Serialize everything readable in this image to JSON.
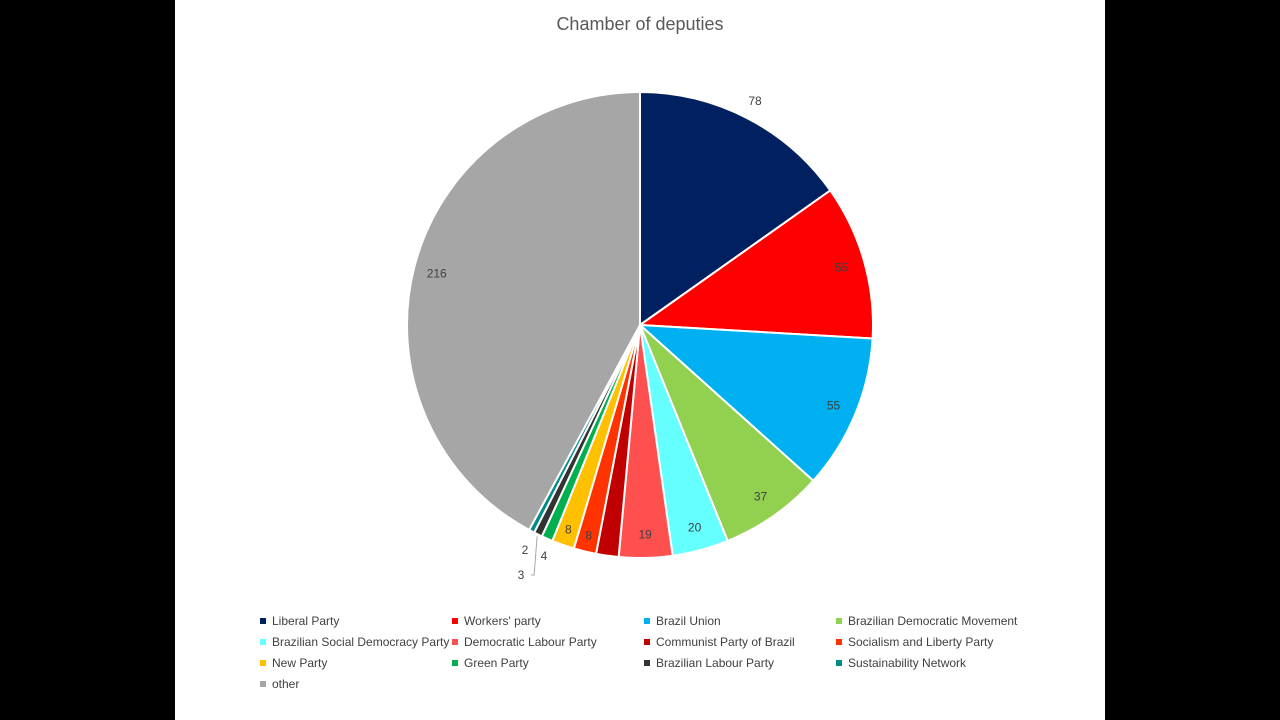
{
  "chart_data": {
    "type": "pie",
    "title": "Chamber of deputies",
    "start_angle_deg": 0,
    "direction": "clockwise",
    "legend_position": "bottom",
    "slices": [
      {
        "name": "Liberal Party",
        "value": 78,
        "color": "#002060",
        "label_color": "#404040"
      },
      {
        "name": "Workers' party",
        "value": 55,
        "color": "#ff0000",
        "label_color": "#404040"
      },
      {
        "name": "Brazil Union",
        "value": 55,
        "color": "#00b0f0",
        "label_color": "#404040"
      },
      {
        "name": "Brazilian Democratic Movement",
        "value": 37,
        "color": "#92d050",
        "label_color": "#404040"
      },
      {
        "name": "Brazilian Social Democracy Party",
        "value": 20,
        "color": "#66ffff",
        "label_color": "#404040"
      },
      {
        "name": "Democratic Labour Party",
        "value": 19,
        "color": "#ff5050",
        "label_color": "#404040"
      },
      {
        "name": "Communist Party of Brazil",
        "value": 8,
        "color": "#c00000",
        "label_color": "#c00000"
      },
      {
        "name": "Socialism and Liberty Party",
        "value": 8,
        "color": "#ff3300",
        "label_color": "#404040"
      },
      {
        "name": "New Party",
        "value": 8,
        "color": "#ffc000",
        "label_color": "#404040"
      },
      {
        "name": "Green Party",
        "value": 4,
        "color": "#00b050",
        "label_color": "#404040"
      },
      {
        "name": "Brazilian Labour Party",
        "value": 3,
        "color": "#333333",
        "label_color": "#404040"
      },
      {
        "name": "Sustainability Network",
        "value": 2,
        "color": "#008b8b",
        "label_color": "#404040"
      },
      {
        "name": "other",
        "value": 216,
        "color": "#a6a6a6",
        "label_color": "#404040"
      }
    ]
  }
}
